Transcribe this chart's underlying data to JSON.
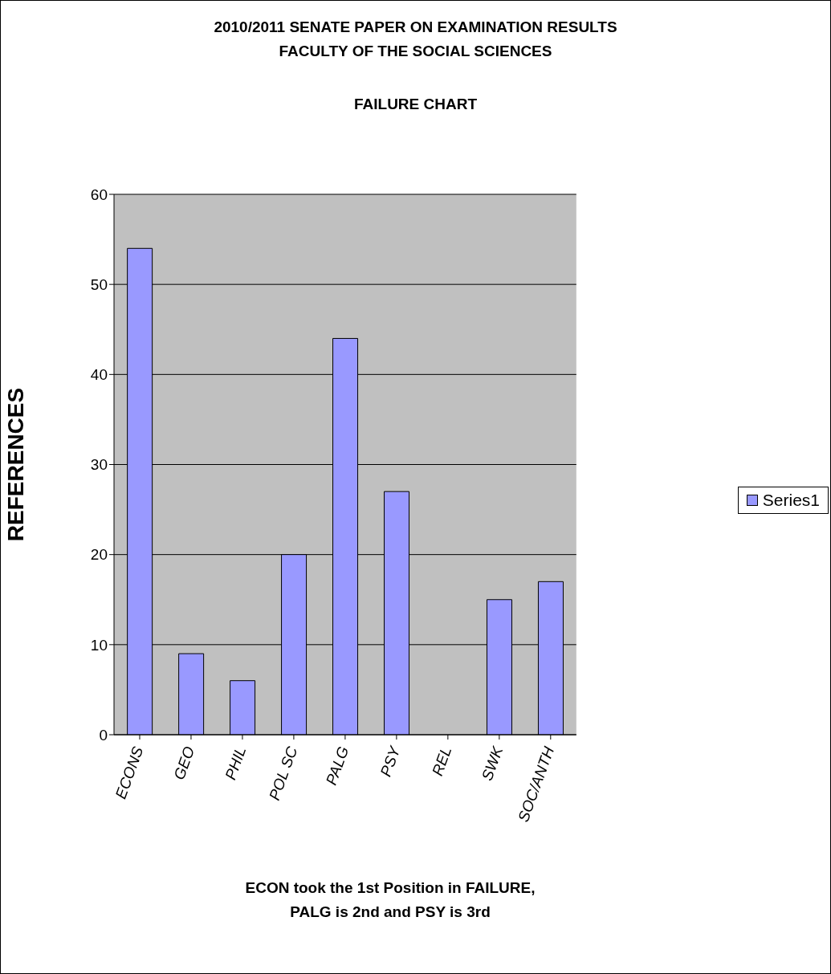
{
  "chart_data": {
    "type": "bar",
    "title": "2010/2011 SENATE PAPER ON EXAMINATION RESULTS\nFACULTY OF THE SOCIAL SCIENCES",
    "subtitle": "FAILURE CHART",
    "ylabel": "REFERENCES",
    "categories": [
      "ECONS",
      "GEO",
      "PHIL",
      "POL SC",
      "PALG",
      "PSY",
      "REL",
      "SWK",
      "SOC/ANTH"
    ],
    "series": [
      {
        "name": "Series1",
        "color": "#9999ff",
        "values": [
          54,
          9,
          6,
          20,
          44,
          27,
          0,
          15,
          17
        ]
      }
    ],
    "ylim": [
      0,
      60
    ],
    "yticks": [
      0,
      10,
      20,
      30,
      40,
      50,
      60
    ],
    "grid": "y",
    "legend": "right",
    "annotations": [
      "ECON took the 1st Position in FAILURE,\nPALG is 2nd and PSY is 3rd"
    ]
  }
}
